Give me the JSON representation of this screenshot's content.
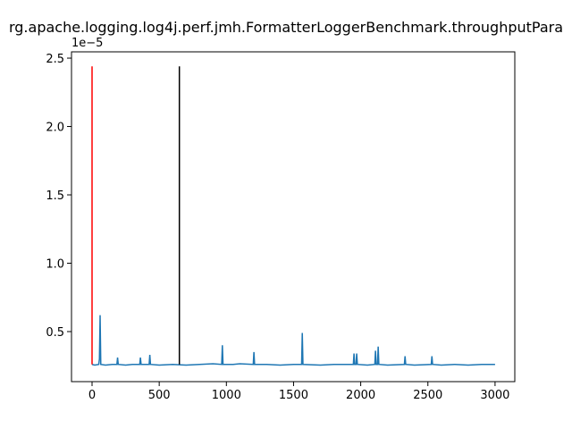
{
  "chart_data": {
    "type": "line",
    "title": "rg.apache.logging.log4j.perf.jmh.FormatterLoggerBenchmark.throughputPara",
    "y_offset_label": "1e−5",
    "color": "#1f77b4",
    "x": [
      0,
      20,
      50,
      55,
      60,
      65,
      100,
      150,
      185,
      190,
      195,
      250,
      300,
      355,
      360,
      365,
      425,
      430,
      435,
      500,
      600,
      700,
      800,
      900,
      965,
      970,
      975,
      1050,
      1100,
      1200,
      1205,
      1210,
      1300,
      1400,
      1500,
      1560,
      1565,
      1570,
      1700,
      1800,
      1900,
      1945,
      1950,
      1955,
      1965,
      1970,
      1975,
      2050,
      2105,
      2110,
      2115,
      2125,
      2130,
      2135,
      2200,
      2325,
      2330,
      2335,
      2400,
      2525,
      2530,
      2535,
      2600,
      2700,
      2800,
      2900,
      3000
    ],
    "values": [
      0.26,
      0.255,
      0.26,
      0.3,
      0.62,
      0.26,
      0.255,
      0.26,
      0.26,
      0.31,
      0.26,
      0.255,
      0.26,
      0.26,
      0.31,
      0.26,
      0.26,
      0.33,
      0.26,
      0.255,
      0.26,
      0.255,
      0.26,
      0.265,
      0.26,
      0.4,
      0.26,
      0.26,
      0.265,
      0.26,
      0.35,
      0.26,
      0.26,
      0.255,
      0.26,
      0.26,
      0.49,
      0.26,
      0.255,
      0.26,
      0.26,
      0.26,
      0.34,
      0.26,
      0.26,
      0.34,
      0.26,
      0.255,
      0.26,
      0.36,
      0.26,
      0.26,
      0.39,
      0.26,
      0.255,
      0.26,
      0.32,
      0.26,
      0.255,
      0.26,
      0.32,
      0.26,
      0.255,
      0.26,
      0.255,
      0.26,
      0.26
    ],
    "vlines": [
      {
        "x": 0,
        "ymin": 0.26,
        "ymax": 2.44,
        "color": "#ff0000"
      },
      {
        "x": 650,
        "ymin": 0.26,
        "ymax": 2.44,
        "color": "#000000"
      }
    ],
    "xlim": [
      -153,
      3147
    ],
    "ylim": [
      0.134,
      2.546
    ],
    "xticks": [
      0,
      500,
      1000,
      1500,
      2000,
      2500,
      3000
    ],
    "yticks": [
      0.5,
      {
        "value": 1,
        "label": "1.0"
      },
      1.5,
      {
        "value": 2,
        "label": "2.0"
      },
      2.5
    ]
  }
}
